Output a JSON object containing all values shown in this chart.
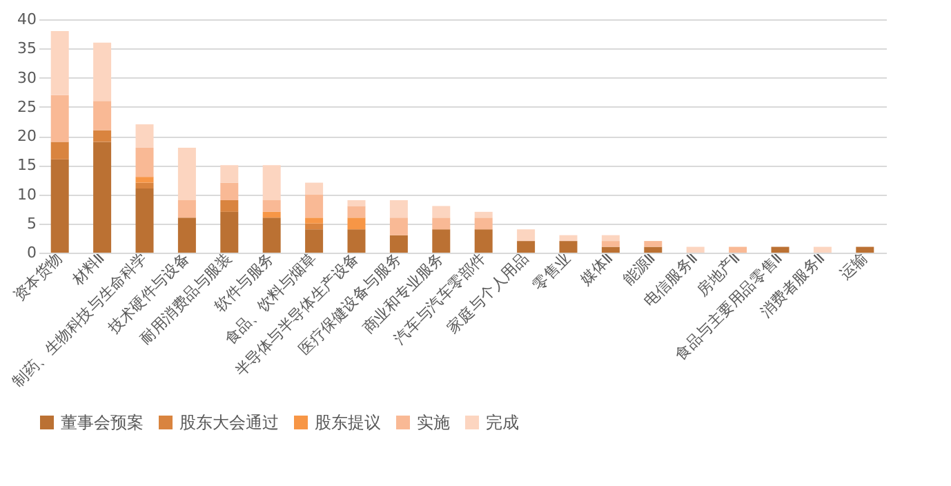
{
  "chart_data": {
    "type": "bar",
    "stacked": true,
    "categories": [
      "资本货物",
      "材料Ⅱ",
      "制药、生物科技与生命科学",
      "技术硬件与设备",
      "耐用消费品与服装",
      "软件与服务",
      "食品、饮料与烟草",
      "半导体与半导体生产设备",
      "医疗保健设备与服务",
      "商业和专业服务",
      "汽车与汽车零部件",
      "家庭与个人用品",
      "零售业",
      "媒体Ⅱ",
      "能源Ⅱ",
      "电信服务Ⅱ",
      "房地产Ⅱ",
      "食品与主要用品零售Ⅱ",
      "消费者服务Ⅱ",
      "运输"
    ],
    "series": [
      {
        "name": "董事会预案",
        "color": "#bb7133",
        "values": [
          16,
          19,
          11,
          6,
          7,
          6,
          4,
          4,
          3,
          4,
          4,
          2,
          2,
          1,
          1,
          0,
          0,
          1,
          0,
          1
        ]
      },
      {
        "name": "股东大会通过",
        "color": "#d9843f",
        "values": [
          3,
          2,
          1,
          0,
          2,
          0,
          1,
          0,
          0,
          0,
          0,
          0,
          0,
          0,
          0,
          0,
          0,
          0,
          0,
          0
        ]
      },
      {
        "name": "股东提议",
        "color": "#f79646",
        "values": [
          0,
          0,
          1,
          0,
          0,
          1,
          1,
          2,
          0,
          0,
          0,
          0,
          0,
          0,
          0,
          0,
          0,
          0,
          0,
          0
        ]
      },
      {
        "name": "实施",
        "color": "#f9b995",
        "values": [
          8,
          5,
          5,
          3,
          3,
          2,
          4,
          2,
          3,
          2,
          2,
          0,
          0,
          1,
          1,
          0,
          1,
          0,
          0,
          0
        ]
      },
      {
        "name": "完成",
        "color": "#fcd5c0",
        "values": [
          11,
          10,
          4,
          9,
          3,
          6,
          2,
          1,
          3,
          2,
          1,
          2,
          1,
          1,
          0,
          1,
          0,
          0,
          1,
          0
        ]
      }
    ],
    "ylim": [
      0,
      40
    ],
    "yticks": [
      0,
      5,
      10,
      15,
      20,
      25,
      30,
      35,
      40
    ],
    "grid": "y",
    "legend": "bottom"
  }
}
